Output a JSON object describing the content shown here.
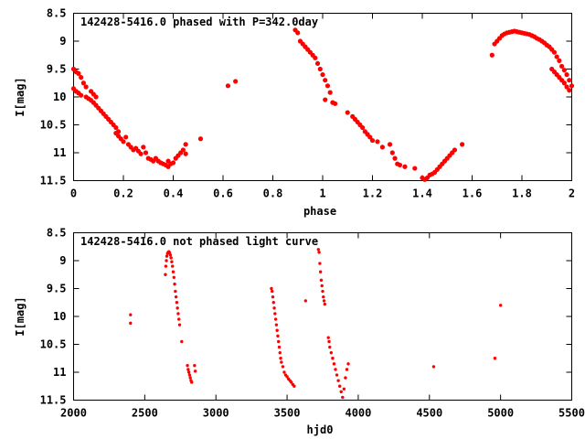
{
  "chart_data": [
    {
      "type": "scatter",
      "title": "142428-5416.0 phased with P=342.0day",
      "xlabel": "phase",
      "ylabel": "I[mag]",
      "xlim": [
        0,
        2
      ],
      "ylim": [
        8.5,
        11.5
      ],
      "y_inverted": true,
      "grid": false,
      "x_ticks": [
        "0",
        "0.2",
        "0.4",
        "0.6",
        "0.8",
        "1",
        "1.2",
        "1.4",
        "1.6",
        "1.8",
        "2"
      ],
      "y_ticks": [
        "8.5",
        "9",
        "9.5",
        "10",
        "10.5",
        "11",
        "11.5"
      ],
      "color": "#ff0000",
      "points": [
        [
          0.0,
          9.5
        ],
        [
          0.01,
          9.55
        ],
        [
          0.02,
          9.58
        ],
        [
          0.03,
          9.65
        ],
        [
          0.0,
          9.85
        ],
        [
          0.01,
          9.9
        ],
        [
          0.02,
          9.93
        ],
        [
          0.03,
          9.97
        ],
        [
          0.04,
          9.75
        ],
        [
          0.05,
          9.82
        ],
        [
          0.05,
          10.0
        ],
        [
          0.06,
          10.03
        ],
        [
          0.07,
          10.06
        ],
        [
          0.08,
          10.1
        ],
        [
          0.09,
          10.15
        ],
        [
          0.07,
          9.9
        ],
        [
          0.08,
          9.95
        ],
        [
          0.09,
          10.0
        ],
        [
          0.1,
          10.2
        ],
        [
          0.11,
          10.25
        ],
        [
          0.12,
          10.3
        ],
        [
          0.13,
          10.35
        ],
        [
          0.14,
          10.4
        ],
        [
          0.15,
          10.45
        ],
        [
          0.16,
          10.5
        ],
        [
          0.17,
          10.55
        ],
        [
          0.17,
          10.65
        ],
        [
          0.18,
          10.7
        ],
        [
          0.19,
          10.75
        ],
        [
          0.2,
          10.8
        ],
        [
          0.18,
          10.62
        ],
        [
          0.21,
          10.72
        ],
        [
          0.22,
          10.85
        ],
        [
          0.23,
          10.9
        ],
        [
          0.24,
          10.95
        ],
        [
          0.25,
          10.92
        ],
        [
          0.26,
          10.97
        ],
        [
          0.27,
          11.02
        ],
        [
          0.28,
          10.9
        ],
        [
          0.29,
          11.0
        ],
        [
          0.3,
          11.1
        ],
        [
          0.31,
          11.12
        ],
        [
          0.32,
          11.15
        ],
        [
          0.33,
          11.1
        ],
        [
          0.34,
          11.15
        ],
        [
          0.35,
          11.18
        ],
        [
          0.36,
          11.2
        ],
        [
          0.37,
          11.22
        ],
        [
          0.38,
          11.25
        ],
        [
          0.38,
          11.15
        ],
        [
          0.39,
          11.2
        ],
        [
          0.4,
          11.18
        ],
        [
          0.41,
          11.1
        ],
        [
          0.42,
          11.05
        ],
        [
          0.43,
          11.0
        ],
        [
          0.44,
          10.95
        ],
        [
          0.45,
          11.02
        ],
        [
          0.45,
          10.85
        ],
        [
          0.51,
          10.75
        ],
        [
          0.62,
          9.8
        ],
        [
          0.65,
          9.72
        ],
        [
          0.89,
          8.8
        ],
        [
          0.9,
          8.85
        ],
        [
          0.91,
          9.0
        ],
        [
          0.92,
          9.05
        ],
        [
          0.93,
          9.1
        ],
        [
          0.94,
          9.15
        ],
        [
          0.95,
          9.2
        ],
        [
          0.96,
          9.25
        ],
        [
          0.97,
          9.3
        ],
        [
          0.98,
          9.4
        ],
        [
          0.99,
          9.5
        ],
        [
          1.0,
          9.6
        ],
        [
          1.01,
          9.7
        ],
        [
          1.02,
          9.8
        ],
        [
          1.03,
          9.92
        ],
        [
          1.01,
          10.05
        ],
        [
          1.04,
          10.1
        ],
        [
          1.05,
          10.12
        ],
        [
          1.1,
          10.28
        ],
        [
          1.12,
          10.35
        ],
        [
          1.13,
          10.4
        ],
        [
          1.14,
          10.45
        ],
        [
          1.15,
          10.5
        ],
        [
          1.16,
          10.55
        ],
        [
          1.17,
          10.62
        ],
        [
          1.18,
          10.67
        ],
        [
          1.19,
          10.72
        ],
        [
          1.2,
          10.78
        ],
        [
          1.22,
          10.8
        ],
        [
          1.24,
          10.9
        ],
        [
          1.27,
          10.85
        ],
        [
          1.28,
          11.0
        ],
        [
          1.29,
          11.1
        ],
        [
          1.3,
          11.2
        ],
        [
          1.31,
          11.22
        ],
        [
          1.33,
          11.25
        ],
        [
          1.37,
          11.28
        ],
        [
          1.4,
          11.45
        ],
        [
          1.41,
          11.48
        ],
        [
          1.42,
          11.45
        ],
        [
          1.43,
          11.4
        ],
        [
          1.44,
          11.38
        ],
        [
          1.45,
          11.35
        ],
        [
          1.46,
          11.3
        ],
        [
          1.47,
          11.25
        ],
        [
          1.48,
          11.2
        ],
        [
          1.49,
          11.15
        ],
        [
          1.5,
          11.1
        ],
        [
          1.51,
          11.05
        ],
        [
          1.52,
          11.0
        ],
        [
          1.53,
          10.95
        ],
        [
          1.56,
          10.85
        ],
        [
          1.68,
          9.25
        ],
        [
          1.69,
          9.05
        ],
        [
          1.7,
          9.0
        ],
        [
          1.71,
          8.95
        ],
        [
          1.72,
          8.9
        ],
        [
          1.73,
          8.87
        ],
        [
          1.74,
          8.85
        ],
        [
          1.75,
          8.84
        ],
        [
          1.76,
          8.83
        ],
        [
          1.77,
          8.82
        ],
        [
          1.78,
          8.83
        ],
        [
          1.79,
          8.84
        ],
        [
          1.8,
          8.85
        ],
        [
          1.81,
          8.86
        ],
        [
          1.82,
          8.87
        ],
        [
          1.83,
          8.88
        ],
        [
          1.84,
          8.9
        ],
        [
          1.85,
          8.92
        ],
        [
          1.86,
          8.95
        ],
        [
          1.87,
          8.97
        ],
        [
          1.88,
          9.0
        ],
        [
          1.89,
          9.03
        ],
        [
          1.9,
          9.07
        ],
        [
          1.91,
          9.1
        ],
        [
          1.92,
          9.15
        ],
        [
          1.93,
          9.2
        ],
        [
          1.94,
          9.28
        ],
        [
          1.95,
          9.35
        ],
        [
          1.96,
          9.45
        ],
        [
          1.97,
          9.52
        ],
        [
          1.98,
          9.6
        ],
        [
          1.99,
          9.7
        ],
        [
          2.0,
          9.8
        ],
        [
          1.92,
          9.5
        ],
        [
          1.93,
          9.55
        ],
        [
          1.94,
          9.6
        ],
        [
          1.95,
          9.65
        ],
        [
          1.96,
          9.7
        ],
        [
          1.97,
          9.75
        ],
        [
          1.98,
          9.82
        ],
        [
          1.99,
          9.88
        ]
      ]
    },
    {
      "type": "scatter",
      "title": "142428-5416.0 not phased light curve",
      "xlabel": "hjd0",
      "ylabel": "I[mag]",
      "xlim": [
        2000,
        5500
      ],
      "ylim": [
        8.5,
        11.5
      ],
      "y_inverted": true,
      "grid": false,
      "x_ticks": [
        "2000",
        "2500",
        "3000",
        "3500",
        "4000",
        "4500",
        "5000",
        "5500"
      ],
      "y_ticks": [
        "8.5",
        "9",
        "9.5",
        "10",
        "10.5",
        "11",
        "11.5"
      ],
      "color": "#ff0000",
      "points": [
        [
          2400,
          9.97
        ],
        [
          2400,
          10.12
        ],
        [
          2645,
          9.25
        ],
        [
          2648,
          9.1
        ],
        [
          2652,
          9.0
        ],
        [
          2655,
          8.92
        ],
        [
          2660,
          8.87
        ],
        [
          2665,
          8.85
        ],
        [
          2670,
          8.84
        ],
        [
          2675,
          8.86
        ],
        [
          2680,
          8.9
        ],
        [
          2685,
          8.95
        ],
        [
          2690,
          9.02
        ],
        [
          2695,
          9.1
        ],
        [
          2700,
          9.2
        ],
        [
          2705,
          9.3
        ],
        [
          2710,
          9.42
        ],
        [
          2715,
          9.55
        ],
        [
          2720,
          9.65
        ],
        [
          2725,
          9.75
        ],
        [
          2730,
          9.85
        ],
        [
          2735,
          9.95
        ],
        [
          2740,
          10.05
        ],
        [
          2745,
          10.15
        ],
        [
          2760,
          10.45
        ],
        [
          2800,
          10.88
        ],
        [
          2805,
          10.95
        ],
        [
          2810,
          11.0
        ],
        [
          2815,
          11.05
        ],
        [
          2820,
          11.1
        ],
        [
          2825,
          11.15
        ],
        [
          2830,
          11.18
        ],
        [
          2850,
          10.88
        ],
        [
          2855,
          10.98
        ],
        [
          3390,
          9.5
        ],
        [
          3395,
          9.55
        ],
        [
          3400,
          9.65
        ],
        [
          3405,
          9.75
        ],
        [
          3410,
          9.85
        ],
        [
          3415,
          9.95
        ],
        [
          3420,
          10.05
        ],
        [
          3425,
          10.15
        ],
        [
          3430,
          10.25
        ],
        [
          3435,
          10.35
        ],
        [
          3440,
          10.45
        ],
        [
          3445,
          10.55
        ],
        [
          3450,
          10.65
        ],
        [
          3455,
          10.75
        ],
        [
          3460,
          10.82
        ],
        [
          3470,
          10.9
        ],
        [
          3480,
          11.0
        ],
        [
          3490,
          11.05
        ],
        [
          3500,
          11.08
        ],
        [
          3510,
          11.12
        ],
        [
          3520,
          11.15
        ],
        [
          3530,
          11.18
        ],
        [
          3540,
          11.22
        ],
        [
          3550,
          11.25
        ],
        [
          3630,
          9.72
        ],
        [
          3720,
          8.8
        ],
        [
          3725,
          8.85
        ],
        [
          3730,
          9.05
        ],
        [
          3735,
          9.2
        ],
        [
          3740,
          9.35
        ],
        [
          3745,
          9.45
        ],
        [
          3750,
          9.55
        ],
        [
          3755,
          9.65
        ],
        [
          3760,
          9.72
        ],
        [
          3765,
          9.78
        ],
        [
          3790,
          10.38
        ],
        [
          3795,
          10.45
        ],
        [
          3800,
          10.55
        ],
        [
          3810,
          10.65
        ],
        [
          3820,
          10.75
        ],
        [
          3830,
          10.85
        ],
        [
          3840,
          10.95
        ],
        [
          3850,
          11.05
        ],
        [
          3860,
          11.15
        ],
        [
          3870,
          11.25
        ],
        [
          3880,
          11.35
        ],
        [
          3890,
          11.45
        ],
        [
          3900,
          11.3
        ],
        [
          3910,
          11.1
        ],
        [
          3920,
          10.95
        ],
        [
          3930,
          10.85
        ],
        [
          4530,
          10.9
        ],
        [
          4960,
          10.75
        ],
        [
          5000,
          9.8
        ]
      ]
    }
  ]
}
